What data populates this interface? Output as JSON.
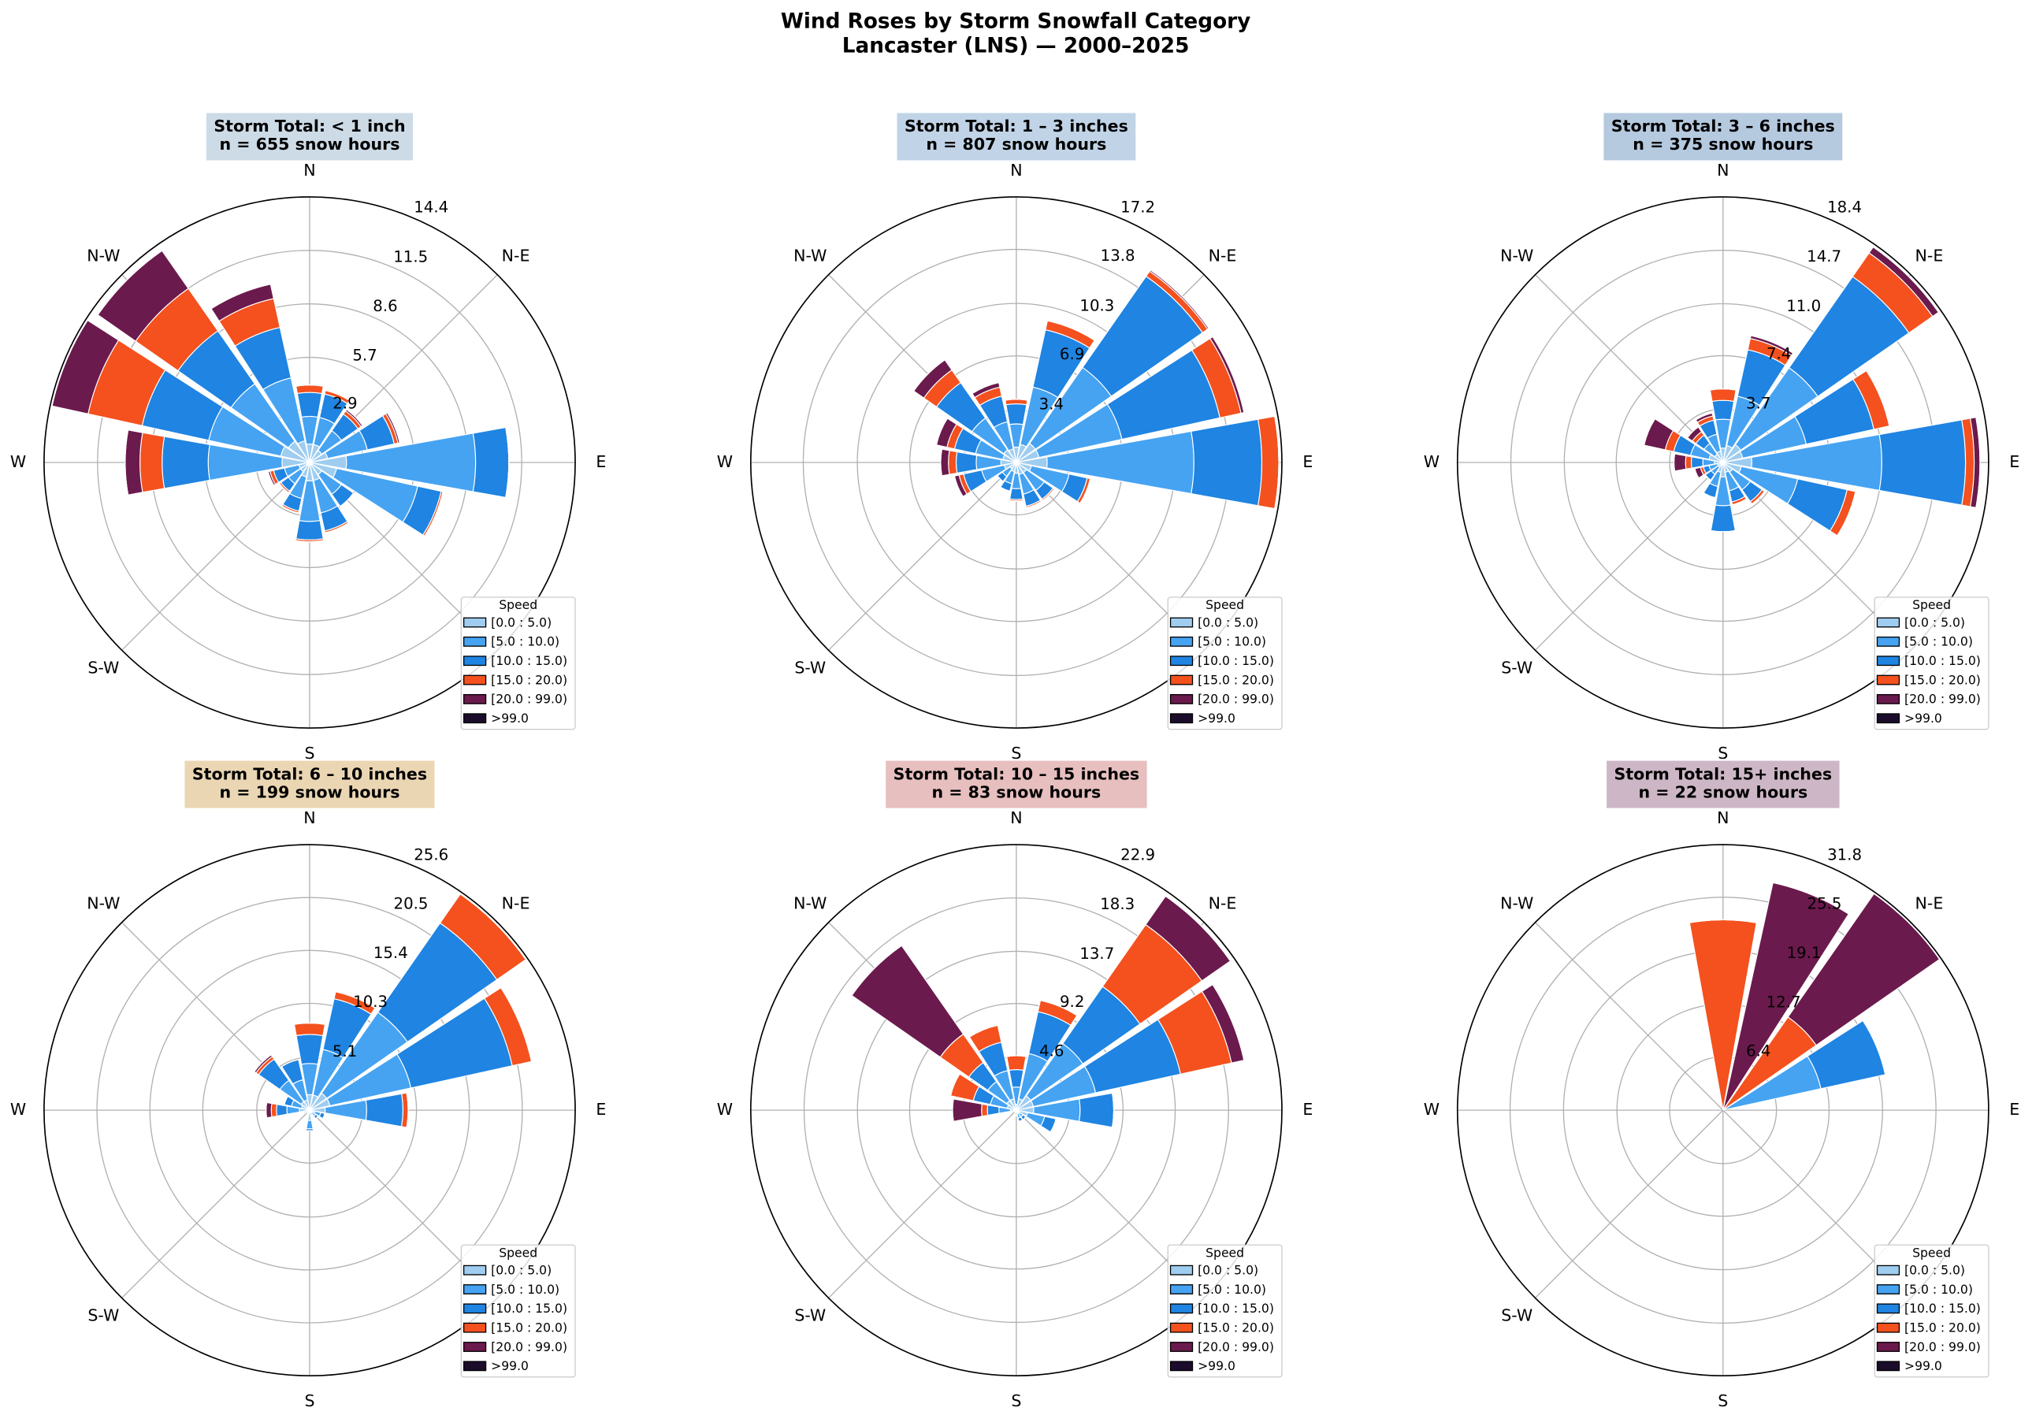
{
  "figure": {
    "title": "Wind Roses by Storm Snowfall Category",
    "subtitle": "Lancaster (LNS) — 2000–2025"
  },
  "chart_data": [
    {
      "type": "windrose",
      "title": "Storm Total: < 1 inch",
      "subtitle": "n = 655 snow hours",
      "title_box_color": "#dcebf8",
      "categories": [
        "N",
        null,
        "N-E",
        null,
        "E",
        null,
        null,
        null,
        "S",
        null,
        "S-W",
        null,
        "W",
        null,
        "N-W",
        null
      ],
      "ylim": [
        0,
        14.4
      ],
      "yticks": [
        2.9,
        5.7,
        8.6,
        11.5,
        14.4
      ],
      "legend_title": "Speed",
      "legend": "lower right",
      "series": [
        {
          "name": "[0.0 : 5.0)",
          "color": "#9fcdf0",
          "values": [
            1.0,
            1.0,
            0.8,
            1.0,
            2.0,
            1.5,
            0.8,
            1.0,
            1.0,
            0.8,
            0.6,
            0.6,
            1.5,
            1.6,
            1.4,
            1.2
          ]
        },
        {
          "name": "[5.0 : 10.0)",
          "color": "#45a3f2",
          "values": [
            1.5,
            1.5,
            1.3,
            2.2,
            7.0,
            4.5,
            1.3,
            1.8,
            2.2,
            1.2,
            0.8,
            0.8,
            4.0,
            4.0,
            3.8,
            3.5
          ]
        },
        {
          "name": "[10.0 : 15.0)",
          "color": "#1f84e2",
          "values": [
            1.3,
            1.3,
            1.1,
            1.5,
            1.8,
            1.3,
            0.8,
            1.0,
            1.0,
            0.7,
            0.5,
            0.6,
            2.5,
            3.7,
            3.5,
            2.8
          ]
        },
        {
          "name": "[15.0 : 20.0)",
          "color": "#f4511e",
          "values": [
            0.4,
            0.2,
            0.2,
            0.2,
            0,
            0.1,
            0,
            0.1,
            0.1,
            0.1,
            0.1,
            0.2,
            1.2,
            3.0,
            2.8,
            1.6
          ]
        },
        {
          "name": "[20.0 : 99.0)",
          "color": "#6b1a4d",
          "values": [
            0,
            0,
            0.1,
            0.1,
            0,
            0,
            0,
            0,
            0,
            0,
            0,
            0.1,
            0.8,
            2.0,
            2.5,
            0.8
          ]
        },
        {
          "name": ">99.0",
          "color": "#1c0c2c",
          "values": [
            0,
            0,
            0,
            0,
            0,
            0,
            0,
            0,
            0,
            0,
            0,
            0,
            0,
            0,
            0,
            0
          ]
        }
      ]
    },
    {
      "type": "windrose",
      "title": "Storm Total: 1 – 3 inches",
      "subtitle": "n = 807 snow hours",
      "title_box_color": "#cfe4f8",
      "categories": [
        "N",
        null,
        "N-E",
        null,
        "E",
        null,
        null,
        null,
        "S",
        null,
        "S-W",
        null,
        "W",
        null,
        "N-W",
        null
      ],
      "ylim": [
        0,
        17.2
      ],
      "yticks": [
        3.4,
        6.9,
        10.3,
        13.8,
        17.2
      ],
      "legend_title": "Speed",
      "legend": "lower right",
      "series": [
        {
          "name": "[0.0 : 5.0)",
          "color": "#9fcdf0",
          "values": [
            1.0,
            1.2,
            1.5,
            1.5,
            2.0,
            1.0,
            0.8,
            0.8,
            0.7,
            0.6,
            0.5,
            0.8,
            1.0,
            0.9,
            1.0,
            0.9
          ]
        },
        {
          "name": "[5.0 : 10.0)",
          "color": "#45a3f2",
          "values": [
            1.5,
            3.8,
            6.0,
            5.5,
            9.5,
            2.5,
            1.4,
            1.3,
            1.0,
            0.8,
            0.6,
            1.5,
            1.6,
            1.8,
            2.5,
            1.8
          ]
        },
        {
          "name": "[10.0 : 15.0)",
          "color": "#1f84e2",
          "values": [
            1.3,
            3.8,
            7.2,
            6.5,
            4.4,
            1.2,
            0.7,
            0.8,
            0.7,
            0.5,
            0.4,
            1.2,
            1.3,
            1.4,
            2.8,
            1.7
          ]
        },
        {
          "name": "[15.0 : 20.0)",
          "color": "#f4511e",
          "values": [
            0.3,
            0.6,
            0.4,
            1.4,
            1.1,
            0.2,
            0.1,
            0.1,
            0.1,
            0,
            0,
            0.3,
            0.5,
            0.5,
            1.0,
            0.6
          ]
        },
        {
          "name": "[20.0 : 99.0)",
          "color": "#6b1a4d",
          "values": [
            0,
            0,
            0.1,
            0.2,
            0,
            0,
            0,
            0,
            0,
            0,
            0,
            0.3,
            0.5,
            0.7,
            0.8,
            0.3
          ]
        },
        {
          "name": ">99.0",
          "color": "#1c0c2c",
          "values": [
            0,
            0,
            0,
            0,
            0,
            0,
            0,
            0,
            0,
            0,
            0,
            0,
            0,
            0,
            0,
            0
          ]
        }
      ]
    },
    {
      "type": "windrose",
      "title": "Storm Total: 3 – 6 inches",
      "subtitle": "n = 375 snow hours",
      "title_box_color": "#c3d8f0",
      "categories": [
        "N",
        null,
        "N-E",
        null,
        "E",
        null,
        null,
        null,
        "S",
        null,
        "S-W",
        null,
        "W",
        null,
        "N-W",
        null
      ],
      "ylim": [
        0,
        18.4
      ],
      "yticks": [
        3.7,
        7.4,
        {
          "value": 11.0,
          "label": "11.0"
        },
        14.7,
        18.4
      ],
      "legend_title": "Speed",
      "legend": "lower right",
      "series": [
        {
          "name": "[0.0 : 5.0)",
          "color": "#9fcdf0",
          "values": [
            1.0,
            1.2,
            1.5,
            1.4,
            2.0,
            1.3,
            0.8,
            0.7,
            1.0,
            0.7,
            0.4,
            0.4,
            0.6,
            1.0,
            0.7,
            0.8
          ]
        },
        {
          "name": "[5.0 : 10.0)",
          "color": "#45a3f2",
          "values": [
            2.0,
            3.5,
            6.5,
            4.5,
            9.0,
            4.0,
            1.5,
            1.3,
            2.0,
            1.0,
            0.6,
            0.6,
            0.8,
            1.3,
            0.9,
            1.2
          ]
        },
        {
          "name": "[10.0 : 15.0)",
          "color": "#1f84e2",
          "values": [
            1.3,
            3.3,
            7.7,
            4.8,
            5.8,
            3.5,
            1.0,
            0.8,
            1.8,
            0.8,
            0.5,
            0.4,
            0.8,
            1.2,
            0.7,
            1.0
          ]
        },
        {
          "name": "[15.0 : 20.0)",
          "color": "#f4511e",
          "values": [
            0.8,
            0.8,
            2.0,
            1.1,
            0.6,
            0.6,
            0.2,
            0.2,
            0,
            0,
            0,
            0.2,
            0.4,
            0.6,
            0.3,
            0.3
          ]
        },
        {
          "name": "[20.0 : 99.0)",
          "color": "#6b1a4d",
          "values": [
            0,
            0.2,
            0.5,
            0,
            0.4,
            0,
            0,
            0,
            0,
            0,
            0,
            0.4,
            0.8,
            1.5,
            0.4,
            0.2
          ]
        },
        {
          "name": ">99.0",
          "color": "#1c0c2c",
          "values": [
            0,
            0,
            0,
            0,
            0,
            0,
            0,
            0,
            0,
            0,
            0,
            0,
            0,
            0,
            0,
            0
          ]
        }
      ]
    },
    {
      "type": "windrose",
      "title": "Storm Total: 6 – 10 inches",
      "subtitle": "n = 199 snow hours",
      "title_box_color": "#fde6c2",
      "categories": [
        "N",
        null,
        "N-E",
        null,
        "E",
        null,
        null,
        null,
        "S",
        null,
        "S-W",
        null,
        "W",
        null,
        "N-W",
        null
      ],
      "ylim": [
        0,
        25.6
      ],
      "yticks": [
        5.1,
        10.3,
        15.4,
        20.5,
        25.6
      ],
      "legend_title": "Speed",
      "legend": "lower right",
      "series": [
        {
          "name": "[0.0 : 5.0)",
          "color": "#9fcdf0",
          "values": [
            1.5,
            1.5,
            2.0,
            2.0,
            1.5,
            0.5,
            0.3,
            0.2,
            1.0,
            0.2,
            0.1,
            0.2,
            1.0,
            0.8,
            1.0,
            1.0
          ]
        },
        {
          "name": "[5.0 : 10.0)",
          "color": "#45a3f2",
          "values": [
            3.0,
            4.5,
            9.5,
            8.0,
            4.0,
            0.6,
            0.4,
            0.3,
            0.8,
            0.2,
            0.1,
            0.2,
            1.2,
            1.0,
            2.5,
            2.0
          ]
        },
        {
          "name": "[10.0 : 15.0)",
          "color": "#1f84e2",
          "values": [
            2.8,
            5.0,
            10.5,
            10.0,
            3.5,
            0.4,
            0.3,
            0,
            0.2,
            0.1,
            0.1,
            0.1,
            1.0,
            0.7,
            2.5,
            2.0
          ]
        },
        {
          "name": "[15.0 : 20.0)",
          "color": "#f4511e",
          "values": [
            1.1,
            0.7,
            3.4,
            1.9,
            0.5,
            0,
            0,
            0,
            0,
            0,
            0,
            0,
            0.5,
            0,
            0.3,
            0
          ]
        },
        {
          "name": "[20.0 : 99.0)",
          "color": "#6b1a4d",
          "values": [
            0,
            0,
            0,
            0,
            0,
            0,
            0,
            0,
            0,
            0,
            0,
            0.1,
            0.5,
            0,
            0.2,
            0
          ]
        },
        {
          "name": ">99.0",
          "color": "#1c0c2c",
          "values": [
            0,
            0,
            0,
            0,
            0,
            0,
            0,
            0,
            0,
            0,
            0,
            0,
            0,
            0,
            0,
            0
          ]
        }
      ]
    },
    {
      "type": "windrose",
      "title": "Storm Total: 10 – 15 inches",
      "subtitle": "n = 83 snow hours",
      "title_box_color": "#f8cdcd",
      "categories": [
        "N",
        null,
        "N-E",
        null,
        "E",
        null,
        null,
        null,
        "S",
        null,
        "S-W",
        null,
        "W",
        null,
        "N-W",
        null
      ],
      "ylim": [
        0,
        22.9
      ],
      "yticks": [
        4.6,
        9.2,
        13.7,
        18.3,
        22.9
      ],
      "legend_title": "Speed",
      "legend": "lower right",
      "series": [
        {
          "name": "[0.0 : 5.0)",
          "color": "#9fcdf0",
          "values": [
            0.5,
            1.0,
            1.5,
            1.5,
            1.5,
            1.0,
            0.3,
            0.3,
            0.2,
            0.1,
            0.1,
            0.1,
            0.5,
            0.8,
            1.0,
            1.0
          ]
        },
        {
          "name": "[5.0 : 10.0)",
          "color": "#45a3f2",
          "values": [
            1.5,
            4.0,
            5.5,
            5.5,
            4.0,
            1.5,
            0.4,
            0.4,
            0.2,
            0.1,
            0.1,
            0.1,
            1.0,
            1.5,
            2.0,
            2.5
          ]
        },
        {
          "name": "[10.0 : 15.0)",
          "color": "#1f84e2",
          "values": [
            1.5,
            3.7,
            6.0,
            7.5,
            2.9,
            1.0,
            0.3,
            0.3,
            0.1,
            0,
            0,
            0,
            1.0,
            1.5,
            2.0,
            2.5
          ]
        },
        {
          "name": "[15.0 : 20.0)",
          "color": "#f4511e",
          "values": [
            1.2,
            1.0,
            6.5,
            4.5,
            0,
            0,
            0,
            0,
            0,
            0,
            0,
            0,
            0.5,
            2.0,
            3.0,
            1.5
          ]
        },
        {
          "name": "[20.0 : 99.0)",
          "color": "#6b1a4d",
          "values": [
            0,
            0,
            3.0,
            1.1,
            0,
            0,
            0,
            0,
            0,
            0,
            0,
            0,
            2.5,
            0,
            9.3,
            0
          ]
        },
        {
          "name": ">99.0",
          "color": "#1c0c2c",
          "values": [
            0,
            0,
            0,
            0,
            0,
            0,
            0,
            0,
            0,
            0,
            0,
            0,
            0,
            0,
            0,
            0
          ]
        }
      ]
    },
    {
      "type": "windrose",
      "title": "Storm Total: 15+ inches",
      "subtitle": "n = 22 snow hours",
      "title_box_color": "#dcc5d5",
      "categories": [
        "N",
        null,
        "N-E",
        null,
        "E",
        null,
        null,
        null,
        "S",
        null,
        "S-W",
        null,
        "W",
        null,
        "N-W",
        null
      ],
      "ylim": [
        0,
        31.8
      ],
      "yticks": [
        6.4,
        12.7,
        19.1,
        25.5,
        31.8
      ],
      "legend_title": "Speed",
      "legend": "lower right",
      "series": [
        {
          "name": "[0.0 : 5.0)",
          "color": "#9fcdf0",
          "values": [
            0,
            0,
            0,
            0,
            0,
            0,
            0,
            0,
            0,
            0,
            0,
            0,
            0,
            0,
            0,
            0
          ]
        },
        {
          "name": "[5.0 : 10.0)",
          "color": "#45a3f2",
          "values": [
            0,
            0,
            0,
            12.0,
            0,
            0,
            0,
            0,
            0,
            0,
            0,
            0,
            0,
            0,
            0,
            0
          ]
        },
        {
          "name": "[10.0 : 15.0)",
          "color": "#1f84e2",
          "values": [
            0,
            0,
            0,
            7.9,
            0,
            0,
            0,
            0,
            0,
            0,
            0,
            0,
            0,
            0,
            0,
            0
          ]
        },
        {
          "name": "[15.0 : 20.0)",
          "color": "#f4511e",
          "values": [
            22.8,
            0,
            13.6,
            0,
            0,
            0,
            0,
            0,
            0,
            0,
            0,
            0,
            0,
            0,
            0,
            0
          ]
        },
        {
          "name": "[20.0 : 99.0)",
          "color": "#6b1a4d",
          "values": [
            0,
            27.9,
            18.0,
            0,
            0,
            0,
            0,
            0,
            0,
            0,
            0,
            0,
            0,
            0,
            0,
            0
          ]
        },
        {
          "name": ">99.0",
          "color": "#1c0c2c",
          "values": [
            0,
            0,
            0,
            0,
            0,
            0,
            0,
            0,
            0,
            0,
            0,
            0,
            0,
            0,
            0,
            0
          ]
        }
      ]
    }
  ]
}
